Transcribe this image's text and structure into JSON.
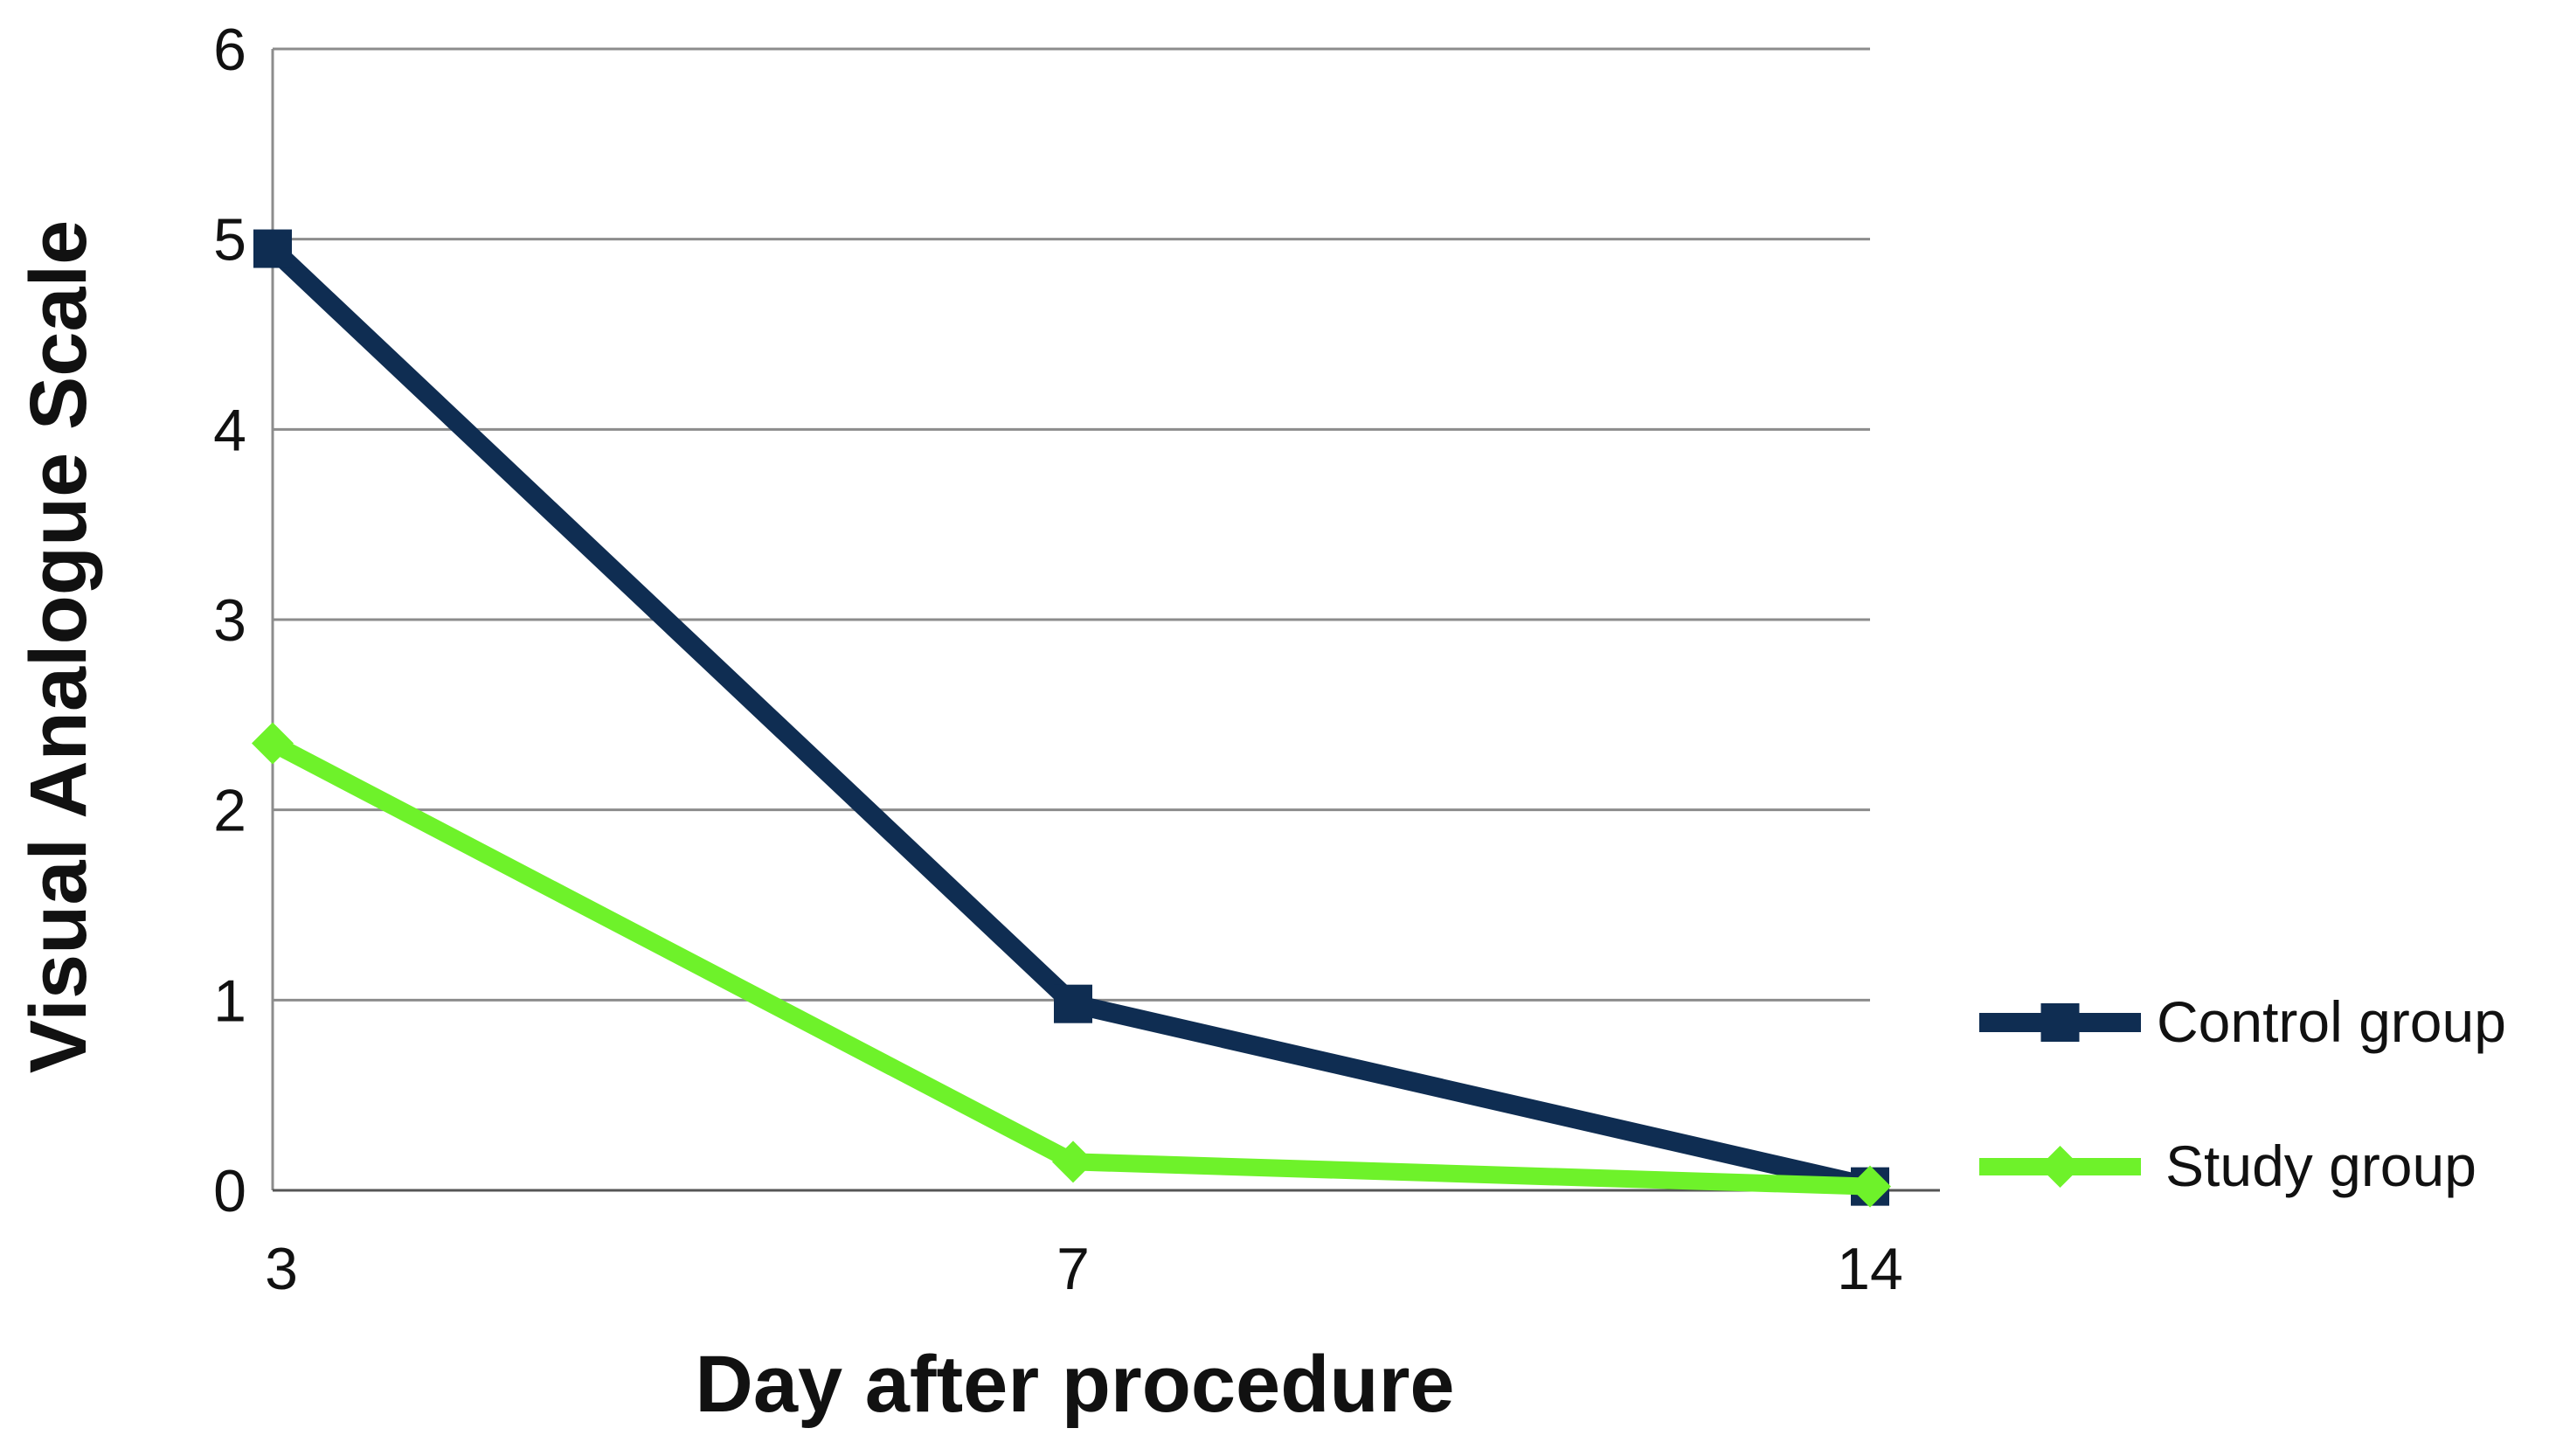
{
  "chart_data": {
    "type": "line",
    "title": "",
    "xlabel": "Day after procedure",
    "ylabel": "Visual Analogue Scale",
    "categories": [
      "3",
      "7",
      "14"
    ],
    "ylim": [
      0,
      6
    ],
    "yticks": [
      "0",
      "1",
      "2",
      "3",
      "4",
      "5",
      "6"
    ],
    "grid": true,
    "legend_position": "right",
    "series": [
      {
        "name": "Control group",
        "values": [
          4.95,
          0.98,
          0.02
        ],
        "color": "#0f2d52",
        "marker": "square"
      },
      {
        "name": "Study group",
        "values": [
          2.35,
          0.15,
          0.02
        ],
        "color": "#6ef22a",
        "marker": "diamond"
      }
    ]
  }
}
